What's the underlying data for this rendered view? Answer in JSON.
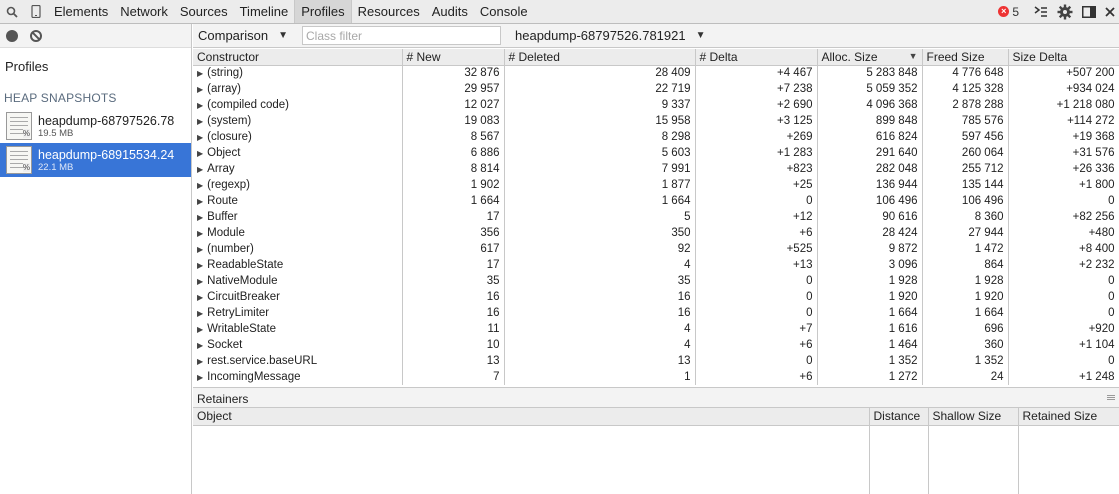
{
  "toolbar": {
    "tabs": [
      "Elements",
      "Network",
      "Sources",
      "Timeline",
      "Profiles",
      "Resources",
      "Audits",
      "Console"
    ],
    "active_tab": "Profiles",
    "error_count": "5"
  },
  "sidebar": {
    "title": "Profiles",
    "section": "HEAP SNAPSHOTS",
    "snapshots": [
      {
        "name": "heapdump-68797526.78",
        "size": "19.5 MB"
      },
      {
        "name": "heapdump-68915534.24",
        "size": "22.1 MB"
      }
    ]
  },
  "filterbar": {
    "view_mode": "Comparison",
    "class_filter_placeholder": "Class filter",
    "base_snapshot": "heapdump-68797526.781921"
  },
  "grid": {
    "columns": [
      "Constructor",
      "# New",
      "# Deleted",
      "# Delta",
      "Alloc. Size",
      "Freed Size",
      "Size Delta"
    ],
    "rows": [
      [
        "(string)",
        "32 876",
        "28 409",
        "+4 467",
        "5 283 848",
        "4 776 648",
        "+507 200"
      ],
      [
        "(array)",
        "29 957",
        "22 719",
        "+7 238",
        "5 059 352",
        "4 125 328",
        "+934 024"
      ],
      [
        "(compiled code)",
        "12 027",
        "9 337",
        "+2 690",
        "4 096 368",
        "2 878 288",
        "+1 218 080"
      ],
      [
        "(system)",
        "19 083",
        "15 958",
        "+3 125",
        "899 848",
        "785 576",
        "+114 272"
      ],
      [
        "(closure)",
        "8 567",
        "8 298",
        "+269",
        "616 824",
        "597 456",
        "+19 368"
      ],
      [
        "Object",
        "6 886",
        "5 603",
        "+1 283",
        "291 640",
        "260 064",
        "+31 576"
      ],
      [
        "Array",
        "8 814",
        "7 991",
        "+823",
        "282 048",
        "255 712",
        "+26 336"
      ],
      [
        "(regexp)",
        "1 902",
        "1 877",
        "+25",
        "136 944",
        "135 144",
        "+1 800"
      ],
      [
        "Route",
        "1 664",
        "1 664",
        "0",
        "106 496",
        "106 496",
        "0"
      ],
      [
        "Buffer",
        "17",
        "5",
        "+12",
        "90 616",
        "8 360",
        "+82 256"
      ],
      [
        "Module",
        "356",
        "350",
        "+6",
        "28 424",
        "27 944",
        "+480"
      ],
      [
        "(number)",
        "617",
        "92",
        "+525",
        "9 872",
        "1 472",
        "+8 400"
      ],
      [
        "ReadableState",
        "17",
        "4",
        "+13",
        "3 096",
        "864",
        "+2 232"
      ],
      [
        "NativeModule",
        "35",
        "35",
        "0",
        "1 928",
        "1 928",
        "0"
      ],
      [
        "CircuitBreaker",
        "16",
        "16",
        "0",
        "1 920",
        "1 920",
        "0"
      ],
      [
        "RetryLimiter",
        "16",
        "16",
        "0",
        "1 664",
        "1 664",
        "0"
      ],
      [
        "WritableState",
        "11",
        "4",
        "+7",
        "1 616",
        "696",
        "+920"
      ],
      [
        "Socket",
        "10",
        "4",
        "+6",
        "1 464",
        "360",
        "+1 104"
      ],
      [
        "rest.service.baseURL",
        "13",
        "13",
        "0",
        "1 352",
        "1 352",
        "0"
      ],
      [
        "IncomingMessage",
        "7",
        "1",
        "+6",
        "1 272",
        "24",
        "+1 248"
      ]
    ]
  },
  "retainers": {
    "title": "Retainers",
    "columns": [
      "Object",
      "Distance",
      "Shallow Size",
      "Retained Size"
    ]
  }
}
